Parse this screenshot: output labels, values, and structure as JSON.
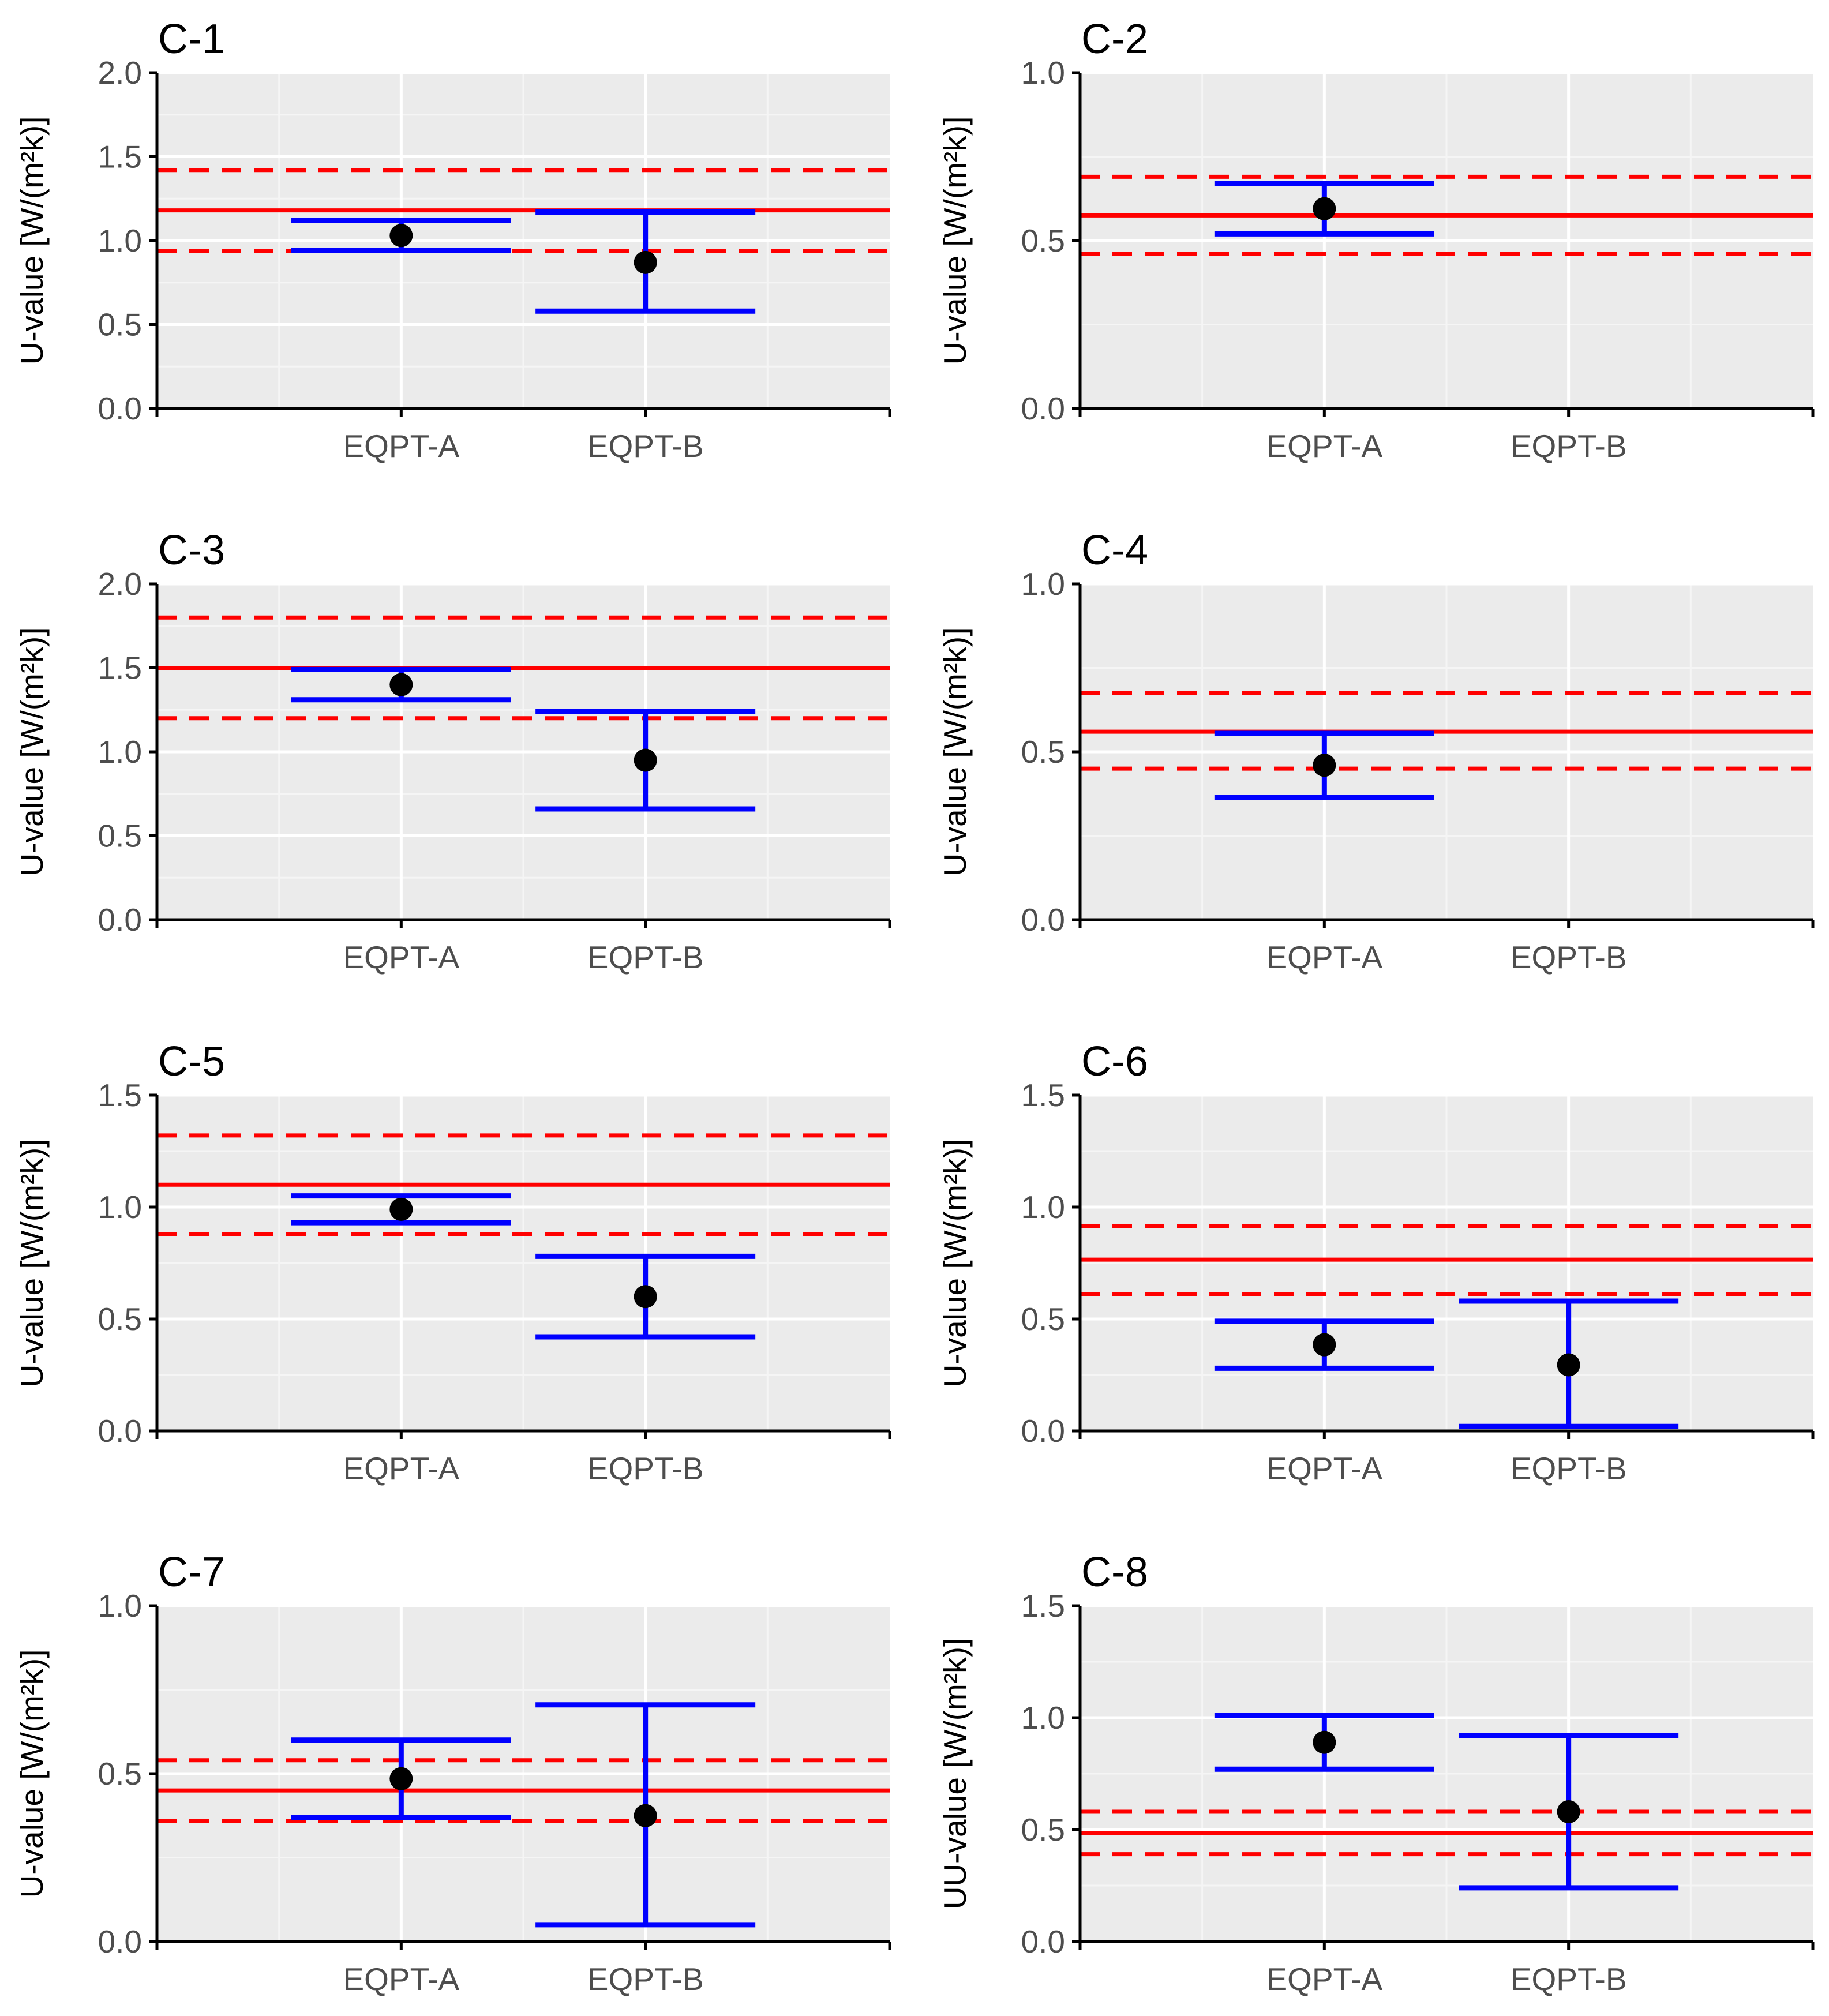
{
  "figure": {
    "background": "#ffffff",
    "panel_background": "#ebebeb",
    "grid_major_color": "#ffffff",
    "grid_minor_color": "#f5f5f5",
    "reference_color": "#ff0000",
    "errorbar_color": "#0000ff",
    "point_color": "#000000"
  },
  "chart_data": [
    {
      "type": "errorbar",
      "title": "C-1",
      "xlabel": "",
      "ylabel": "U-value [W/(m²k)]",
      "categories": [
        "EQPT-A",
        "EQPT-B"
      ],
      "ylim": [
        0,
        2.0
      ],
      "yticks": [
        "0.0",
        "0.5",
        "1.0",
        "1.5",
        "2.0"
      ],
      "grid": true,
      "reference": {
        "value": 1.18,
        "lower": 0.94,
        "upper": 1.42
      },
      "points": [
        {
          "category": "EQPT-A",
          "value": 1.03,
          "lower": 0.94,
          "upper": 1.12
        },
        {
          "category": "EQPT-B",
          "value": 0.87,
          "lower": 0.58,
          "upper": 1.17
        }
      ]
    },
    {
      "type": "errorbar",
      "title": "C-2",
      "xlabel": "",
      "ylabel": "U-value [W/(m²k)]",
      "categories": [
        "EQPT-A",
        "EQPT-B"
      ],
      "ylim": [
        0,
        1.0
      ],
      "yticks": [
        "0.0",
        "0.5",
        "1.0"
      ],
      "grid": true,
      "reference": {
        "value": 0.575,
        "lower": 0.46,
        "upper": 0.69
      },
      "points": [
        {
          "category": "EQPT-A",
          "value": 0.595,
          "lower": 0.52,
          "upper": 0.67
        }
      ]
    },
    {
      "type": "errorbar",
      "title": "C-3",
      "xlabel": "",
      "ylabel": "U-value [W/(m²k)]",
      "categories": [
        "EQPT-A",
        "EQPT-B"
      ],
      "ylim": [
        0,
        2.0
      ],
      "yticks": [
        "0.0",
        "0.5",
        "1.0",
        "1.5",
        "2.0"
      ],
      "grid": true,
      "reference": {
        "value": 1.5,
        "lower": 1.2,
        "upper": 1.8
      },
      "points": [
        {
          "category": "EQPT-A",
          "value": 1.4,
          "lower": 1.31,
          "upper": 1.49
        },
        {
          "category": "EQPT-B",
          "value": 0.95,
          "lower": 0.66,
          "upper": 1.24
        }
      ]
    },
    {
      "type": "errorbar",
      "title": "C-4",
      "xlabel": "",
      "ylabel": "U-value [W/(m²k)]",
      "categories": [
        "EQPT-A",
        "EQPT-B"
      ],
      "ylim": [
        0,
        1.0
      ],
      "yticks": [
        "0.0",
        "0.5",
        "1.0"
      ],
      "grid": true,
      "reference": {
        "value": 0.56,
        "lower": 0.45,
        "upper": 0.675
      },
      "points": [
        {
          "category": "EQPT-A",
          "value": 0.46,
          "lower": 0.365,
          "upper": 0.555
        }
      ]
    },
    {
      "type": "errorbar",
      "title": "C-5",
      "xlabel": "",
      "ylabel": "U-value [W/(m²k)]",
      "categories": [
        "EQPT-A",
        "EQPT-B"
      ],
      "ylim": [
        0,
        1.5
      ],
      "yticks": [
        "0.0",
        "0.5",
        "1.0",
        "1.5"
      ],
      "grid": true,
      "reference": {
        "value": 1.1,
        "lower": 0.88,
        "upper": 1.32
      },
      "points": [
        {
          "category": "EQPT-A",
          "value": 0.99,
          "lower": 0.93,
          "upper": 1.05
        },
        {
          "category": "EQPT-B",
          "value": 0.6,
          "lower": 0.42,
          "upper": 0.78
        }
      ]
    },
    {
      "type": "errorbar",
      "title": "C-6",
      "xlabel": "",
      "ylabel": "U-value [W/(m²k)]",
      "categories": [
        "EQPT-A",
        "EQPT-B"
      ],
      "ylim": [
        0,
        1.5
      ],
      "yticks": [
        "0.0",
        "0.5",
        "1.0",
        "1.5"
      ],
      "grid": true,
      "reference": {
        "value": 0.765,
        "lower": 0.61,
        "upper": 0.915
      },
      "points": [
        {
          "category": "EQPT-A",
          "value": 0.385,
          "lower": 0.28,
          "upper": 0.49
        },
        {
          "category": "EQPT-B",
          "value": 0.295,
          "lower": 0.02,
          "upper": 0.58
        }
      ]
    },
    {
      "type": "errorbar",
      "title": "C-7",
      "xlabel": "",
      "ylabel": "U-value [W/(m²k)]",
      "categories": [
        "EQPT-A",
        "EQPT-B"
      ],
      "ylim": [
        0,
        1.0
      ],
      "yticks": [
        "0.0",
        "0.5",
        "1.0"
      ],
      "grid": true,
      "reference": {
        "value": 0.45,
        "lower": 0.36,
        "upper": 0.54
      },
      "points": [
        {
          "category": "EQPT-A",
          "value": 0.485,
          "lower": 0.37,
          "upper": 0.6
        },
        {
          "category": "EQPT-B",
          "value": 0.375,
          "lower": 0.05,
          "upper": 0.705
        }
      ]
    },
    {
      "type": "errorbar",
      "title": "C-8",
      "xlabel": "",
      "ylabel": "UU-value [W/(m²k)]",
      "categories": [
        "EQPT-A",
        "EQPT-B"
      ],
      "ylim": [
        0,
        1.5
      ],
      "yticks": [
        "0.0",
        "0.5",
        "1.0",
        "1.5"
      ],
      "grid": true,
      "reference": {
        "value": 0.485,
        "lower": 0.39,
        "upper": 0.58
      },
      "points": [
        {
          "category": "EQPT-A",
          "value": 0.89,
          "lower": 0.77,
          "upper": 1.01
        },
        {
          "category": "EQPT-B",
          "value": 0.58,
          "lower": 0.24,
          "upper": 0.92
        }
      ]
    }
  ]
}
